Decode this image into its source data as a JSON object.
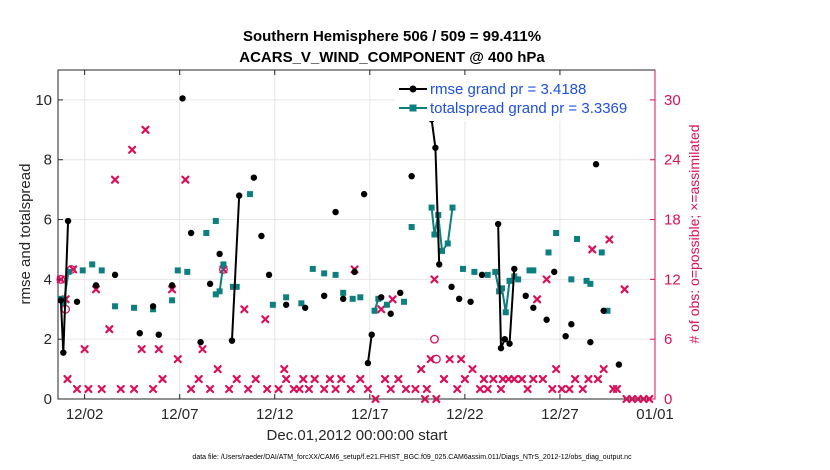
{
  "chart_data": {
    "type": "line",
    "title_line1": "Southern Hemisphere 506 / 509 = 99.411%",
    "title_line2": "ACARS_V_WIND_COMPONENT @ 400 hPa",
    "xlabel": "Dec.01,2012 00:00:00 start",
    "ylabel_left": "rmse and totalspread",
    "ylabel_right": "# of obs: o=possible; ×=assimilated",
    "xlim": [
      -0.4,
      31.0
    ],
    "ylim_left": [
      0,
      11
    ],
    "ylim_right": [
      0,
      33
    ],
    "x_ticks": [
      {
        "x": 1,
        "label": "12/02"
      },
      {
        "x": 6,
        "label": "12/07"
      },
      {
        "x": 11,
        "label": "12/12"
      },
      {
        "x": 16,
        "label": "12/17"
      },
      {
        "x": 21,
        "label": "12/22"
      },
      {
        "x": 26,
        "label": "12/27"
      },
      {
        "x": 31,
        "label": "01/01"
      }
    ],
    "y_ticks_left": [
      {
        "v": 0,
        "label": "0"
      },
      {
        "v": 2,
        "label": "2"
      },
      {
        "v": 4,
        "label": "4"
      },
      {
        "v": 6,
        "label": "6"
      },
      {
        "v": 8,
        "label": "8"
      },
      {
        "v": 10,
        "label": "10"
      }
    ],
    "y_ticks_right": [
      {
        "v": 0,
        "label": "0"
      },
      {
        "v": 6,
        "label": "6"
      },
      {
        "v": 12,
        "label": "12"
      },
      {
        "v": 18,
        "label": "18"
      },
      {
        "v": 24,
        "label": "24"
      },
      {
        "v": 30,
        "label": "30"
      }
    ],
    "legend": [
      {
        "name": "rmse grand pr = 3.4188",
        "color": "#000000"
      },
      {
        "name": "totalspread grand pr = 3.3369",
        "color": "#0d7f80"
      }
    ],
    "rmse": {
      "color": "#000000",
      "segments": [
        [
          [
            -0.25,
            3.3
          ],
          [
            -0.12,
            1.55
          ],
          [
            0.13,
            5.95
          ]
        ],
        [
          [
            8.75,
            1.95
          ],
          [
            9.13,
            6.8
          ]
        ],
        [
          [
            15.9,
            1.2
          ],
          [
            16.1,
            2.15
          ]
        ],
        [
          [
            19.25,
            9.35
          ],
          [
            19.45,
            8.4
          ],
          [
            19.65,
            4.5
          ]
        ],
        [
          [
            22.75,
            5.85
          ],
          [
            22.9,
            1.7
          ],
          [
            23.1,
            2.0
          ],
          [
            23.35,
            1.85
          ],
          [
            23.6,
            4.35
          ]
        ]
      ],
      "points": [
        [
          0.6,
          3.25
        ],
        [
          1.6,
          3.8
        ],
        [
          2.6,
          4.15
        ],
        [
          3.9,
          2.2
        ],
        [
          4.6,
          3.1
        ],
        [
          4.9,
          2.15
        ],
        [
          5.6,
          3.8
        ],
        [
          6.15,
          10.05
        ],
        [
          6.6,
          5.55
        ],
        [
          7.1,
          1.9
        ],
        [
          7.6,
          3.85
        ],
        [
          8.1,
          4.85
        ],
        [
          9.9,
          7.4
        ],
        [
          10.3,
          5.45
        ],
        [
          10.7,
          4.15
        ],
        [
          11.6,
          3.15
        ],
        [
          12.6,
          3.05
        ],
        [
          13.6,
          3.45
        ],
        [
          14.2,
          6.25
        ],
        [
          14.6,
          3.35
        ],
        [
          15.2,
          4.25
        ],
        [
          15.7,
          6.85
        ],
        [
          16.6,
          3.4
        ],
        [
          17.1,
          2.85
        ],
        [
          17.6,
          3.55
        ],
        [
          18.2,
          7.45
        ],
        [
          20.3,
          3.75
        ],
        [
          20.7,
          3.35
        ],
        [
          21.3,
          3.25
        ],
        [
          21.9,
          4.15
        ],
        [
          24.2,
          3.45
        ],
        [
          24.6,
          3.05
        ],
        [
          25.3,
          2.65
        ],
        [
          25.7,
          4.25
        ],
        [
          26.3,
          2.1
        ],
        [
          26.6,
          2.5
        ],
        [
          27.6,
          1.9
        ],
        [
          27.9,
          7.85
        ],
        [
          28.3,
          2.95
        ],
        [
          29.1,
          1.15
        ]
      ]
    },
    "totalspread": {
      "color": "#0d7f80",
      "segments": [
        [
          [
            -0.25,
            3.35
          ],
          [
            -0.1,
            3.2
          ],
          [
            0.15,
            4.25
          ]
        ],
        [
          [
            7.9,
            3.5
          ],
          [
            8.1,
            3.6
          ],
          [
            8.3,
            4.5
          ]
        ],
        [
          [
            8.8,
            3.75
          ],
          [
            9.0,
            3.75
          ]
        ],
        [
          [
            16.25,
            2.95
          ],
          [
            16.45,
            3.35
          ]
        ],
        [
          [
            19.25,
            6.4
          ],
          [
            19.4,
            5.5
          ],
          [
            19.6,
            6.15
          ],
          [
            19.8,
            4.95
          ],
          [
            20.1,
            5.2
          ],
          [
            20.35,
            6.4
          ]
        ],
        [
          [
            22.6,
            4.25
          ],
          [
            22.8,
            3.6
          ],
          [
            22.95,
            3.7
          ],
          [
            23.15,
            2.9
          ],
          [
            23.35,
            3.95
          ],
          [
            23.6,
            4.1
          ]
        ]
      ],
      "points": [
        [
          0.9,
          4.3
        ],
        [
          1.4,
          4.5
        ],
        [
          1.9,
          4.3
        ],
        [
          2.6,
          3.1
        ],
        [
          3.6,
          3.05
        ],
        [
          4.6,
          3.0
        ],
        [
          5.6,
          3.3
        ],
        [
          5.9,
          4.3
        ],
        [
          6.4,
          4.25
        ],
        [
          7.4,
          5.55
        ],
        [
          7.9,
          5.95
        ],
        [
          9.7,
          6.85
        ],
        [
          10.9,
          3.15
        ],
        [
          11.6,
          3.4
        ],
        [
          12.4,
          3.2
        ],
        [
          13.0,
          4.35
        ],
        [
          13.6,
          4.2
        ],
        [
          14.2,
          4.15
        ],
        [
          14.6,
          3.55
        ],
        [
          15.1,
          3.35
        ],
        [
          15.5,
          3.4
        ],
        [
          16.9,
          3.15
        ],
        [
          17.8,
          3.25
        ],
        [
          18.2,
          5.75
        ],
        [
          20.9,
          4.35
        ],
        [
          21.5,
          4.25
        ],
        [
          22.2,
          4.15
        ],
        [
          23.8,
          4.0
        ],
        [
          24.4,
          4.3
        ],
        [
          24.6,
          4.3
        ],
        [
          25.4,
          4.9
        ],
        [
          25.8,
          5.55
        ],
        [
          26.6,
          4.0
        ],
        [
          26.9,
          5.35
        ],
        [
          27.4,
          3.95
        ],
        [
          27.6,
          3.85
        ],
        [
          28.2,
          4.9
        ],
        [
          28.5,
          2.95
        ]
      ]
    },
    "obs_assimilated": {
      "color": "#d9105c",
      "points": [
        [
          -0.25,
          12
        ],
        [
          0.0,
          10
        ],
        [
          0.1,
          2
        ],
        [
          0.4,
          13
        ],
        [
          0.6,
          1
        ],
        [
          1.0,
          5
        ],
        [
          1.2,
          1
        ],
        [
          1.6,
          11
        ],
        [
          1.9,
          1
        ],
        [
          2.3,
          7
        ],
        [
          2.6,
          22
        ],
        [
          2.9,
          1
        ],
        [
          3.5,
          25
        ],
        [
          3.6,
          1
        ],
        [
          4.0,
          5
        ],
        [
          4.2,
          27
        ],
        [
          4.6,
          1
        ],
        [
          4.9,
          5
        ],
        [
          5.1,
          2
        ],
        [
          5.6,
          11
        ],
        [
          5.9,
          4
        ],
        [
          6.3,
          22
        ],
        [
          6.6,
          1
        ],
        [
          7.0,
          2
        ],
        [
          7.2,
          5
        ],
        [
          7.6,
          1
        ],
        [
          8.0,
          3
        ],
        [
          8.3,
          13
        ],
        [
          8.6,
          1
        ],
        [
          9.0,
          2
        ],
        [
          9.4,
          9
        ],
        [
          9.6,
          1
        ],
        [
          10.0,
          2
        ],
        [
          10.5,
          8
        ],
        [
          10.6,
          1
        ],
        [
          11.2,
          1
        ],
        [
          11.5,
          3
        ],
        [
          11.6,
          2
        ],
        [
          12.0,
          1
        ],
        [
          12.3,
          1
        ],
        [
          12.5,
          2
        ],
        [
          12.8,
          1
        ],
        [
          13.1,
          2
        ],
        [
          13.6,
          1
        ],
        [
          13.9,
          2
        ],
        [
          14.2,
          1
        ],
        [
          14.5,
          2
        ],
        [
          15.0,
          1
        ],
        [
          15.2,
          13
        ],
        [
          15.5,
          2
        ],
        [
          15.9,
          1
        ],
        [
          16.3,
          0
        ],
        [
          16.6,
          9
        ],
        [
          16.8,
          2
        ],
        [
          17.1,
          1
        ],
        [
          17.2,
          10
        ],
        [
          17.5,
          2
        ],
        [
          17.9,
          1
        ],
        [
          18.4,
          1
        ],
        [
          18.7,
          3
        ],
        [
          18.9,
          0
        ],
        [
          19.0,
          1
        ],
        [
          19.2,
          4
        ],
        [
          19.4,
          12
        ],
        [
          19.5,
          0
        ],
        [
          19.9,
          2
        ],
        [
          20.2,
          4
        ],
        [
          20.6,
          1
        ],
        [
          20.8,
          4
        ],
        [
          21.0,
          2
        ],
        [
          21.4,
          3
        ],
        [
          21.8,
          1
        ],
        [
          22.0,
          2
        ],
        [
          22.2,
          1
        ],
        [
          22.5,
          2
        ],
        [
          22.9,
          1
        ],
        [
          23.0,
          2
        ],
        [
          23.3,
          2
        ],
        [
          23.6,
          2
        ],
        [
          24.0,
          2
        ],
        [
          24.3,
          1
        ],
        [
          24.6,
          2
        ],
        [
          24.8,
          10
        ],
        [
          25.1,
          2
        ],
        [
          25.3,
          12
        ],
        [
          25.6,
          1
        ],
        [
          25.8,
          3
        ],
        [
          26.1,
          1
        ],
        [
          26.5,
          1
        ],
        [
          26.8,
          2
        ],
        [
          27.2,
          1
        ],
        [
          27.5,
          2
        ],
        [
          27.7,
          15
        ],
        [
          28.0,
          2
        ],
        [
          28.3,
          3
        ],
        [
          28.6,
          16
        ],
        [
          28.8,
          1
        ],
        [
          29.0,
          1
        ],
        [
          29.4,
          11
        ],
        [
          29.5,
          0
        ],
        [
          29.8,
          0
        ],
        [
          30.1,
          0
        ],
        [
          30.4,
          0
        ],
        [
          30.7,
          0
        ]
      ]
    },
    "obs_possible": {
      "color": "#d9105c",
      "points": [
        [
          -0.25,
          12
        ],
        [
          0.0,
          9
        ],
        [
          0.3,
          13
        ],
        [
          8.3,
          13
        ],
        [
          19.4,
          6
        ],
        [
          19.5,
          4
        ]
      ]
    }
  },
  "footnote": "data file: /Users/raeder/DAI/ATM_forcXX/CAM6_setup/f.e21.FHIST_BGC.f09_025.CAM6assim.011/Diags_NTrS_2012-12/obs_diag_output.nc"
}
